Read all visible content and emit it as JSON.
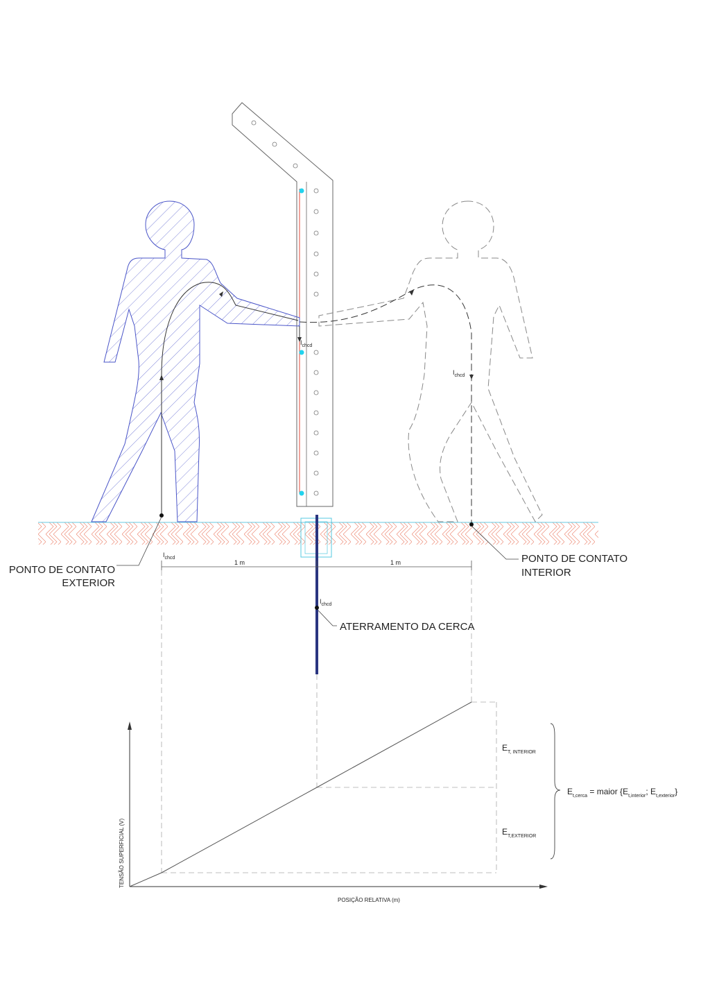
{
  "labels": {
    "exterior_line1": "PONTO DE CONTATO",
    "exterior_line2": "EXTERIOR",
    "interior_line1": "PONTO DE CONTATO",
    "interior_line2": "INTERIOR",
    "grounding": "ATERRAMENTO DA CERCA",
    "dim_left": "1 m",
    "dim_right": "1 m"
  },
  "current": {
    "symbol": "I",
    "subscript": "chcd"
  },
  "graph": {
    "ylabel": "TENSÃO SUPERFICIAL (V)",
    "xlabel": "POSIÇÃO RELATIVA (m)",
    "et_interior": {
      "main": "E",
      "sub": "T, INTERIOR"
    },
    "et_exterior": {
      "main": "E",
      "sub": "T,EXTERIOR"
    },
    "equation": {
      "lhs_main": "E",
      "lhs_sub": "t,cerca",
      "eq": " = maior {",
      "a_main": "E",
      "a_sub": "t,interior",
      "sep": "; ",
      "b_main": "E",
      "b_sub": "t,exterior",
      "close": "}"
    }
  },
  "colors": {
    "person_outline": "#4a55c8",
    "ground_hatch": "#e8735a",
    "ground_line": "#66c8e0",
    "electrode": "#2a3580",
    "cyan_point": "#22d3ee",
    "red_conductor": "#e04a3a"
  }
}
